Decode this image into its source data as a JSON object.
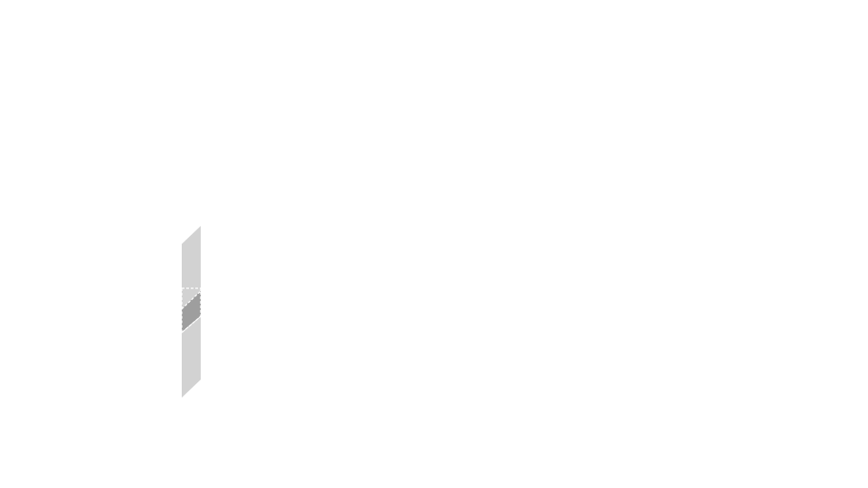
{
  "colors": {
    "background": "#ffffff",
    "plane_fill": "#d2d2d2",
    "overlap_fill": "#9e9e9e",
    "dash_stroke": "#ffffff"
  },
  "shapes": [
    {
      "name": "parallelogram-plane",
      "icon": "plane-shape"
    },
    {
      "name": "overlap-region",
      "icon": "dashed-overlap-shape"
    }
  ]
}
